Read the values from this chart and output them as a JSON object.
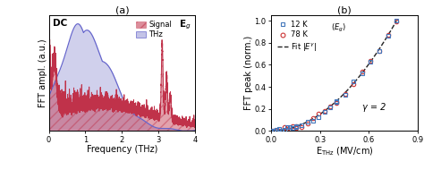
{
  "panel_a_title": "(a)",
  "panel_b_title": "(b)",
  "xlabel_a": "Frequency (THz)",
  "ylabel_a": "FFT ampl. (a.u.)",
  "ylabel_b": "FFT peak (norm.)",
  "xlim_a": [
    0,
    4
  ],
  "xlim_b": [
    0,
    0.9
  ],
  "ylim_b": [
    0,
    1.05
  ],
  "legend_12K_label": "12 K",
  "legend_78K_label": "78 K",
  "gamma_label": "γ = 2",
  "DC_label": "DC",
  "Eg_right_label": "E$_g$",
  "signal_label": "Signal",
  "THz_label": "THz",
  "color_signal": "#c0324a",
  "color_THz": "#6666cc",
  "color_THz_fill": "#aaaadd",
  "color_12K": "#4477bb",
  "color_78K": "#cc3333",
  "color_fit": "#222222",
  "hatch_signal": "///",
  "fill_THz_alpha": 0.55,
  "fill_signal_alpha": 0.45
}
